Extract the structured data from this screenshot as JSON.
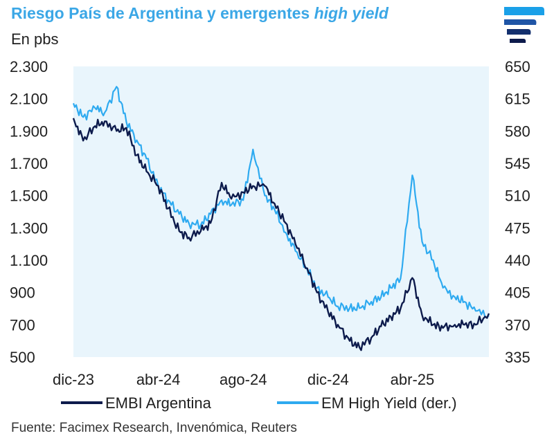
{
  "header": {
    "title_main": "Riesgo País de Argentina y emergentes ",
    "title_italic": "high yield",
    "unit": "En pbs"
  },
  "logo_icon": "brand-stripes-icon",
  "footer": {
    "source": "Fuente: Facimex Research, Invenómica, Reuters"
  },
  "colors": {
    "embi": "#0d1b4c",
    "hy": "#2eaaf0",
    "plot_bg": "#e9f5fc",
    "title": "#3ba7e6"
  },
  "chart_data": {
    "type": "line",
    "title": "Riesgo País de Argentina y emergentes high yield",
    "ylabel": "En pbs",
    "x_tick_labels": [
      "dic-23",
      "abr-24",
      "ago-24",
      "dic-24",
      "abr-25"
    ],
    "x_tick_dates": [
      "2023-12-01",
      "2024-04-01",
      "2024-08-01",
      "2024-12-01",
      "2025-04-01"
    ],
    "xlim": [
      "2023-12-01",
      "2025-07-20"
    ],
    "y_left": {
      "lim": [
        500,
        2300
      ],
      "ticks": [
        "2.300",
        "2.100",
        "1.900",
        "1.700",
        "1.500",
        "1.300",
        "1.100",
        "900",
        "700",
        "500"
      ]
    },
    "y_right": {
      "lim": [
        335,
        650
      ],
      "ticks": [
        "650",
        "615",
        "580",
        "545",
        "510",
        "475",
        "440",
        "405",
        "370",
        "335"
      ]
    },
    "legend": {
      "position": "bottom"
    },
    "grid": false,
    "series": [
      {
        "name": "EMBI Argentina",
        "axis": "left",
        "points": [
          [
            "2023-12-01",
            1980
          ],
          [
            "2023-12-15",
            1840
          ],
          [
            "2024-01-01",
            1930
          ],
          [
            "2024-01-15",
            1960
          ],
          [
            "2024-02-01",
            1900
          ],
          [
            "2024-02-15",
            1920
          ],
          [
            "2024-03-01",
            1750
          ],
          [
            "2024-03-15",
            1650
          ],
          [
            "2024-04-01",
            1560
          ],
          [
            "2024-04-15",
            1420
          ],
          [
            "2024-05-01",
            1280
          ],
          [
            "2024-05-15",
            1240
          ],
          [
            "2024-06-01",
            1280
          ],
          [
            "2024-06-15",
            1330
          ],
          [
            "2024-07-01",
            1580
          ],
          [
            "2024-07-15",
            1480
          ],
          [
            "2024-08-01",
            1520
          ],
          [
            "2024-08-15",
            1560
          ],
          [
            "2024-09-01",
            1560
          ],
          [
            "2024-09-15",
            1450
          ],
          [
            "2024-10-01",
            1330
          ],
          [
            "2024-10-15",
            1200
          ],
          [
            "2024-11-01",
            1050
          ],
          [
            "2024-11-15",
            900
          ],
          [
            "2024-12-01",
            780
          ],
          [
            "2024-12-15",
            700
          ],
          [
            "2025-01-01",
            600
          ],
          [
            "2025-01-15",
            560
          ],
          [
            "2025-02-01",
            620
          ],
          [
            "2025-02-15",
            690
          ],
          [
            "2025-03-01",
            750
          ],
          [
            "2025-03-15",
            800
          ],
          [
            "2025-04-01",
            990
          ],
          [
            "2025-04-15",
            760
          ],
          [
            "2025-05-01",
            700
          ],
          [
            "2025-05-15",
            680
          ],
          [
            "2025-06-01",
            700
          ],
          [
            "2025-06-15",
            700
          ],
          [
            "2025-07-01",
            700
          ],
          [
            "2025-07-20",
            770
          ]
        ]
      },
      {
        "name": "EM High Yield (der.)",
        "axis": "right",
        "points": [
          [
            "2023-12-01",
            610
          ],
          [
            "2023-12-15",
            595
          ],
          [
            "2024-01-01",
            605
          ],
          [
            "2024-01-15",
            600
          ],
          [
            "2024-02-01",
            628
          ],
          [
            "2024-02-15",
            590
          ],
          [
            "2024-03-01",
            570
          ],
          [
            "2024-03-15",
            550
          ],
          [
            "2024-04-01",
            520
          ],
          [
            "2024-04-15",
            505
          ],
          [
            "2024-05-01",
            490
          ],
          [
            "2024-05-15",
            480
          ],
          [
            "2024-06-01",
            478
          ],
          [
            "2024-06-15",
            490
          ],
          [
            "2024-07-01",
            505
          ],
          [
            "2024-07-15",
            500
          ],
          [
            "2024-08-01",
            505
          ],
          [
            "2024-08-15",
            560
          ],
          [
            "2024-09-01",
            510
          ],
          [
            "2024-09-15",
            495
          ],
          [
            "2024-10-01",
            470
          ],
          [
            "2024-10-15",
            450
          ],
          [
            "2024-11-01",
            430
          ],
          [
            "2024-11-15",
            410
          ],
          [
            "2024-12-01",
            400
          ],
          [
            "2024-12-15",
            390
          ],
          [
            "2025-01-01",
            388
          ],
          [
            "2025-01-15",
            388
          ],
          [
            "2025-02-01",
            395
          ],
          [
            "2025-02-15",
            400
          ],
          [
            "2025-03-01",
            410
          ],
          [
            "2025-03-15",
            420
          ],
          [
            "2025-04-01",
            532
          ],
          [
            "2025-04-15",
            460
          ],
          [
            "2025-05-01",
            440
          ],
          [
            "2025-05-15",
            410
          ],
          [
            "2025-06-01",
            400
          ],
          [
            "2025-06-15",
            395
          ],
          [
            "2025-07-01",
            385
          ],
          [
            "2025-07-20",
            380
          ]
        ]
      }
    ]
  }
}
